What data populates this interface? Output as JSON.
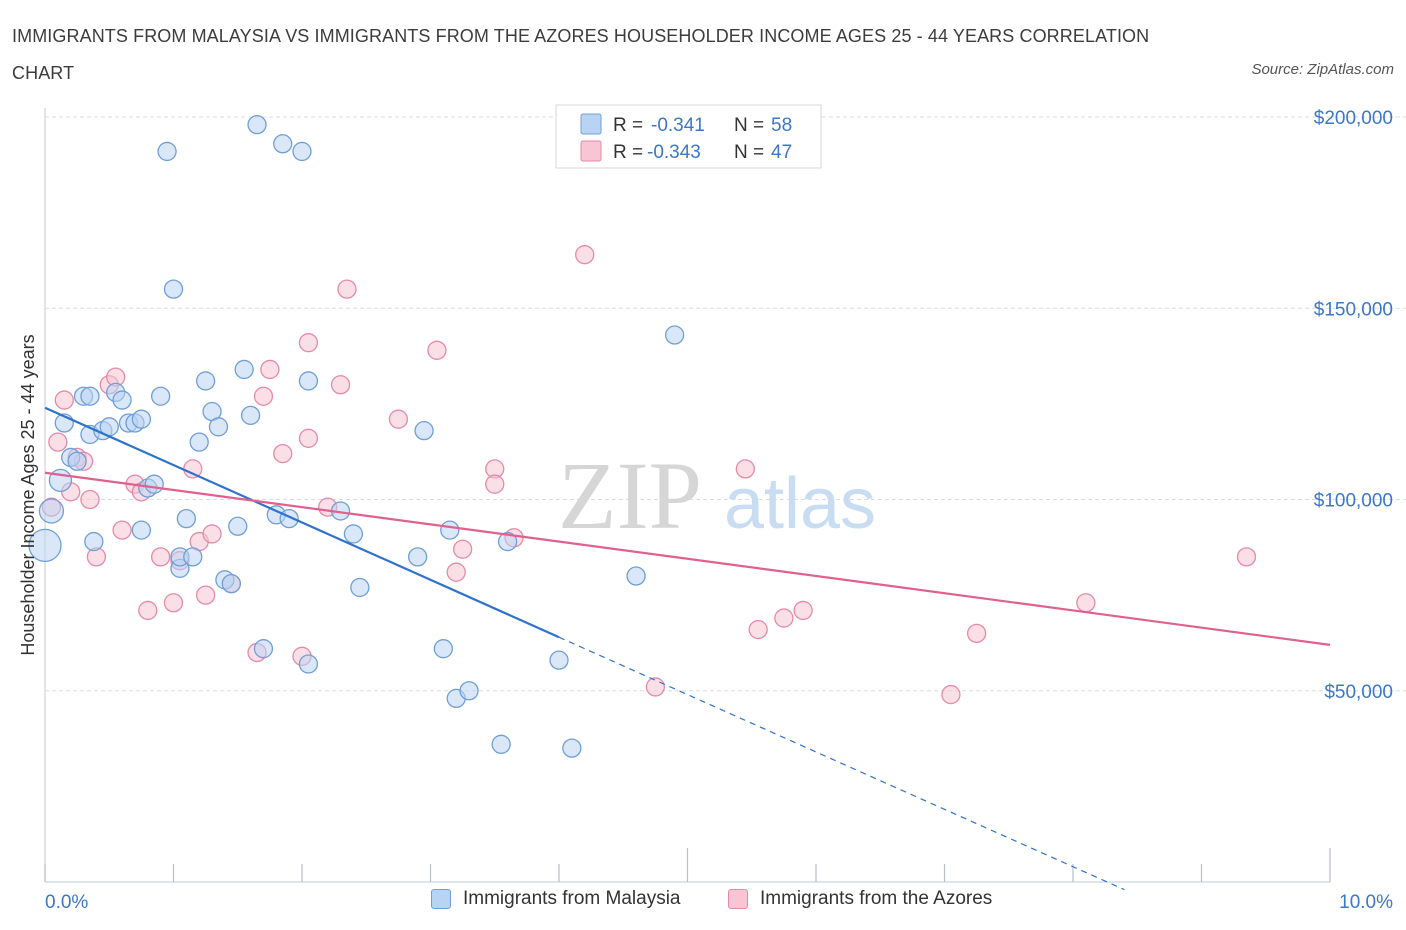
{
  "title": "IMMIGRANTS FROM MALAYSIA VS IMMIGRANTS FROM THE AZORES HOUSEHOLDER INCOME AGES 25 - 44 YEARS CORRELATION CHART",
  "source": "Source: ZipAtlas.com",
  "watermark": {
    "zip": "ZIP",
    "atlas": "atlas"
  },
  "colors": {
    "blue_fill": "#b9d3f2",
    "blue_stroke": "#6f9fd8",
    "blue_line": "#2f72cc",
    "pink_fill": "#f7c5d4",
    "pink_stroke": "#e68aa8",
    "pink_line": "#e0608e",
    "axis_label": "#3a78c8",
    "grid": "#d9dce3"
  },
  "legend_top": [
    {
      "r_label": "R =",
      "r_value": "-0.341",
      "n_label": "N =",
      "n_value": "58"
    },
    {
      "r_label": "R =",
      "r_value": "-0.343",
      "n_label": "N =",
      "n_value": "47"
    }
  ],
  "chart_data": {
    "type": "scatter",
    "title": "IMMIGRANTS FROM MALAYSIA VS IMMIGRANTS FROM THE AZORES HOUSEHOLDER INCOME AGES 25 - 44 YEARS CORRELATION CHART",
    "xlabel": "",
    "ylabel": "Householder Income Ages 25 - 44 years",
    "xlim": [
      0,
      10
    ],
    "ylim": [
      0,
      200000
    ],
    "x_tick_labels": [
      "0.0%",
      "10.0%"
    ],
    "y_tick_values": [
      50000,
      100000,
      150000,
      200000
    ],
    "y_tick_labels": [
      "$50,000",
      "$100,000",
      "$150,000",
      "$200,000"
    ],
    "grid": true,
    "legend_position": "top-center",
    "series": [
      {
        "name": "Immigrants from Malaysia",
        "r": -0.341,
        "n": 58,
        "trend": {
          "x0": 0,
          "y0": 124000,
          "x1": 4.0,
          "y1": 64000,
          "dash_to_x": 8.4
        },
        "points": [
          {
            "x": 0.0,
            "y": 88000,
            "s": 16
          },
          {
            "x": 0.05,
            "y": 97000,
            "s": 12
          },
          {
            "x": 0.12,
            "y": 105000,
            "s": 11
          },
          {
            "x": 0.15,
            "y": 120000,
            "s": 9
          },
          {
            "x": 0.2,
            "y": 111000,
            "s": 9
          },
          {
            "x": 0.25,
            "y": 110000,
            "s": 9
          },
          {
            "x": 0.3,
            "y": 127000,
            "s": 9
          },
          {
            "x": 0.35,
            "y": 127000,
            "s": 9
          },
          {
            "x": 0.35,
            "y": 117000,
            "s": 9
          },
          {
            "x": 0.38,
            "y": 89000,
            "s": 9
          },
          {
            "x": 0.45,
            "y": 118000,
            "s": 9
          },
          {
            "x": 0.5,
            "y": 119000,
            "s": 9
          },
          {
            "x": 0.55,
            "y": 128000,
            "s": 9
          },
          {
            "x": 0.6,
            "y": 126000,
            "s": 9
          },
          {
            "x": 0.65,
            "y": 120000,
            "s": 9
          },
          {
            "x": 0.7,
            "y": 120000,
            "s": 9
          },
          {
            "x": 0.75,
            "y": 121000,
            "s": 9
          },
          {
            "x": 0.8,
            "y": 103000,
            "s": 9
          },
          {
            "x": 0.75,
            "y": 92000,
            "s": 9
          },
          {
            "x": 0.85,
            "y": 104000,
            "s": 9
          },
          {
            "x": 0.9,
            "y": 127000,
            "s": 9
          },
          {
            "x": 0.95,
            "y": 191000,
            "s": 9
          },
          {
            "x": 1.0,
            "y": 155000,
            "s": 9
          },
          {
            "x": 1.05,
            "y": 82000,
            "s": 9
          },
          {
            "x": 1.05,
            "y": 85000,
            "s": 9
          },
          {
            "x": 1.1,
            "y": 95000,
            "s": 9
          },
          {
            "x": 1.15,
            "y": 85000,
            "s": 9
          },
          {
            "x": 1.2,
            "y": 115000,
            "s": 9
          },
          {
            "x": 1.25,
            "y": 131000,
            "s": 9
          },
          {
            "x": 1.3,
            "y": 123000,
            "s": 9
          },
          {
            "x": 1.35,
            "y": 119000,
            "s": 9
          },
          {
            "x": 1.4,
            "y": 79000,
            "s": 9
          },
          {
            "x": 1.45,
            "y": 78000,
            "s": 9
          },
          {
            "x": 1.5,
            "y": 93000,
            "s": 9
          },
          {
            "x": 1.55,
            "y": 134000,
            "s": 9
          },
          {
            "x": 1.6,
            "y": 122000,
            "s": 9
          },
          {
            "x": 1.65,
            "y": 198000,
            "s": 9
          },
          {
            "x": 1.7,
            "y": 61000,
            "s": 9
          },
          {
            "x": 1.8,
            "y": 96000,
            "s": 9
          },
          {
            "x": 1.85,
            "y": 193000,
            "s": 9
          },
          {
            "x": 1.9,
            "y": 95000,
            "s": 9
          },
          {
            "x": 2.0,
            "y": 191000,
            "s": 9
          },
          {
            "x": 2.05,
            "y": 131000,
            "s": 9
          },
          {
            "x": 2.05,
            "y": 57000,
            "s": 9
          },
          {
            "x": 2.3,
            "y": 97000,
            "s": 9
          },
          {
            "x": 2.4,
            "y": 91000,
            "s": 9
          },
          {
            "x": 2.45,
            "y": 77000,
            "s": 9
          },
          {
            "x": 2.9,
            "y": 85000,
            "s": 9
          },
          {
            "x": 2.95,
            "y": 118000,
            "s": 9
          },
          {
            "x": 3.1,
            "y": 61000,
            "s": 9
          },
          {
            "x": 3.15,
            "y": 92000,
            "s": 9
          },
          {
            "x": 3.2,
            "y": 48000,
            "s": 9
          },
          {
            "x": 3.3,
            "y": 50000,
            "s": 9
          },
          {
            "x": 3.6,
            "y": 89000,
            "s": 9
          },
          {
            "x": 3.55,
            "y": 36000,
            "s": 9
          },
          {
            "x": 4.0,
            "y": 58000,
            "s": 9
          },
          {
            "x": 4.1,
            "y": 35000,
            "s": 9
          },
          {
            "x": 4.6,
            "y": 80000,
            "s": 9
          },
          {
            "x": 4.9,
            "y": 143000,
            "s": 9
          }
        ]
      },
      {
        "name": "Immigrants from the Azores",
        "r": -0.343,
        "n": 47,
        "trend": {
          "x0": 0,
          "y0": 107000,
          "x1": 10.0,
          "y1": 62000
        },
        "points": [
          {
            "x": 0.05,
            "y": 98000,
            "s": 9
          },
          {
            "x": 0.1,
            "y": 115000,
            "s": 9
          },
          {
            "x": 0.15,
            "y": 126000,
            "s": 9
          },
          {
            "x": 0.2,
            "y": 102000,
            "s": 9
          },
          {
            "x": 0.25,
            "y": 111000,
            "s": 9
          },
          {
            "x": 0.3,
            "y": 110000,
            "s": 9
          },
          {
            "x": 0.35,
            "y": 100000,
            "s": 9
          },
          {
            "x": 0.4,
            "y": 85000,
            "s": 9
          },
          {
            "x": 0.5,
            "y": 130000,
            "s": 9
          },
          {
            "x": 0.55,
            "y": 132000,
            "s": 9
          },
          {
            "x": 0.6,
            "y": 92000,
            "s": 9
          },
          {
            "x": 0.7,
            "y": 104000,
            "s": 9
          },
          {
            "x": 0.75,
            "y": 102000,
            "s": 9
          },
          {
            "x": 0.8,
            "y": 71000,
            "s": 9
          },
          {
            "x": 0.9,
            "y": 85000,
            "s": 9
          },
          {
            "x": 1.0,
            "y": 73000,
            "s": 9
          },
          {
            "x": 1.05,
            "y": 84000,
            "s": 9
          },
          {
            "x": 1.15,
            "y": 108000,
            "s": 9
          },
          {
            "x": 1.2,
            "y": 89000,
            "s": 9
          },
          {
            "x": 1.25,
            "y": 75000,
            "s": 9
          },
          {
            "x": 1.3,
            "y": 91000,
            "s": 9
          },
          {
            "x": 1.45,
            "y": 78000,
            "s": 9
          },
          {
            "x": 1.65,
            "y": 60000,
            "s": 9
          },
          {
            "x": 1.7,
            "y": 127000,
            "s": 9
          },
          {
            "x": 1.75,
            "y": 134000,
            "s": 9
          },
          {
            "x": 1.85,
            "y": 112000,
            "s": 9
          },
          {
            "x": 2.0,
            "y": 59000,
            "s": 9
          },
          {
            "x": 2.05,
            "y": 141000,
            "s": 9
          },
          {
            "x": 2.05,
            "y": 116000,
            "s": 9
          },
          {
            "x": 2.2,
            "y": 98000,
            "s": 9
          },
          {
            "x": 2.3,
            "y": 130000,
            "s": 9
          },
          {
            "x": 2.35,
            "y": 155000,
            "s": 9
          },
          {
            "x": 2.75,
            "y": 121000,
            "s": 9
          },
          {
            "x": 3.05,
            "y": 139000,
            "s": 9
          },
          {
            "x": 3.2,
            "y": 81000,
            "s": 9
          },
          {
            "x": 3.25,
            "y": 87000,
            "s": 9
          },
          {
            "x": 3.5,
            "y": 108000,
            "s": 9
          },
          {
            "x": 3.5,
            "y": 104000,
            "s": 9
          },
          {
            "x": 3.65,
            "y": 90000,
            "s": 9
          },
          {
            "x": 4.2,
            "y": 164000,
            "s": 9
          },
          {
            "x": 4.75,
            "y": 51000,
            "s": 9
          },
          {
            "x": 5.45,
            "y": 108000,
            "s": 9
          },
          {
            "x": 5.55,
            "y": 66000,
            "s": 9
          },
          {
            "x": 5.75,
            "y": 69000,
            "s": 9
          },
          {
            "x": 5.9,
            "y": 71000,
            "s": 9
          },
          {
            "x": 7.25,
            "y": 65000,
            "s": 9
          },
          {
            "x": 7.05,
            "y": 49000,
            "s": 9
          },
          {
            "x": 8.1,
            "y": 73000,
            "s": 9
          },
          {
            "x": 9.35,
            "y": 85000,
            "s": 9
          }
        ]
      }
    ]
  }
}
